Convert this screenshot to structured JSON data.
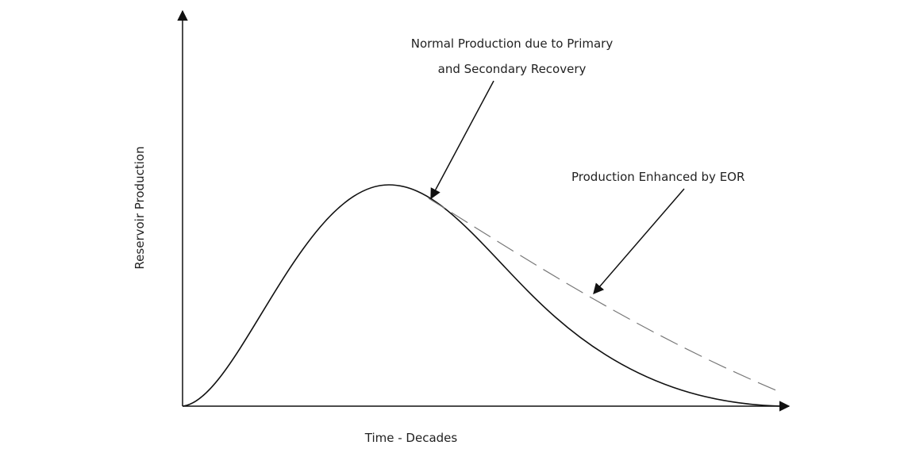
{
  "annotations": [
    {
      "lines": [
        "Normal Production due to Primary",
        "and Secondary Recovery"
      ]
    },
    {
      "text": "Production Enhanced by EOR"
    }
  ],
  "y_axis_label": "Reservoir Production",
  "x_axis_label": "Time - Decades"
}
